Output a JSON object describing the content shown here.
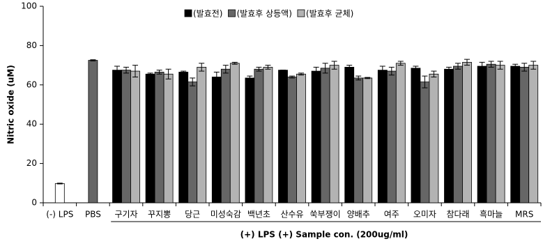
{
  "chart_data": {
    "type": "bar",
    "y_label": "Nitric oxide (uM)",
    "annotation": "(+) LPS    (+) Sample con. (200ug/ml)",
    "categories": [
      "(-) LPS",
      "PBS",
      "구기자",
      "꾸지뽕",
      "당근",
      "미성숙감",
      "백년초",
      "산수유",
      "쑥부쟁이",
      "양배추",
      "여주",
      "오미자",
      "참다래",
      "흑마늘",
      "MRS"
    ],
    "series": [
      {
        "name": "(발효전)",
        "color": "#000000",
        "point_colors": [
          "#ffffff",
          null,
          null,
          null,
          null,
          null,
          null,
          null,
          null,
          null,
          null,
          null,
          null,
          null,
          null
        ],
        "values": [
          9.8,
          null,
          67.5,
          65.5,
          66.5,
          64,
          63.5,
          67.5,
          67,
          69,
          67.5,
          68.5,
          68,
          69.5,
          69.5
        ],
        "errors": [
          0.2,
          null,
          2,
          0.5,
          0.5,
          2.5,
          1,
          0,
          2,
          1,
          2,
          1,
          1,
          2,
          1
        ]
      },
      {
        "name": "(발효후 상등액)",
        "color": "#666666",
        "values": [
          null,
          72.5,
          67.5,
          66.5,
          61.5,
          68,
          68,
          64,
          68.5,
          63.5,
          67,
          61.5,
          69.5,
          70.5,
          69
        ],
        "errors": [
          null,
          0.3,
          1.5,
          1,
          2,
          2,
          1,
          0.5,
          2.5,
          1,
          2,
          3,
          1.5,
          1.5,
          2
        ]
      },
      {
        "name": "(발효후 균체)",
        "color": "#b3b3b3",
        "values": [
          null,
          null,
          67,
          65.5,
          69,
          71,
          69,
          65.5,
          70,
          63.5,
          71,
          65.5,
          71.5,
          70,
          70
        ],
        "errors": [
          null,
          null,
          3,
          2.5,
          2,
          0.5,
          1,
          0.5,
          2,
          0.3,
          1,
          1.5,
          1.5,
          2,
          2
        ]
      }
    ],
    "ylim": [
      0,
      100
    ],
    "yticks": [
      0,
      20,
      40,
      60,
      80,
      100
    ],
    "grid": false
  }
}
